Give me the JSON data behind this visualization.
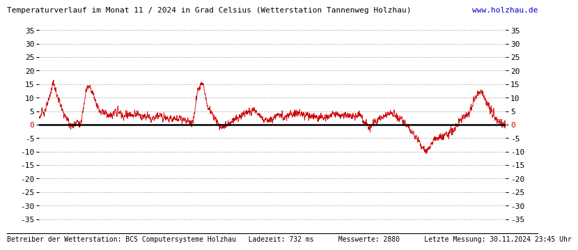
{
  "title": "Temperaturverlauf im Monat 11 / 2024 in Grad Celsius (Wetterstation Tannenweg Holzhau)",
  "url_text": "www.holzhau.de",
  "footer_text": "Betreiber der Wetterstation: BCS Computersysteme Holzhau   Ladezeit: 732 ms      Messwerte: 2880      Letzte Messung: 30.11.2024 23:45 Uhr",
  "ylim": [
    -37,
    37
  ],
  "yticks": [
    -35,
    -30,
    -25,
    -20,
    -15,
    -10,
    -5,
    0,
    5,
    10,
    15,
    20,
    25,
    30,
    35
  ],
  "line_color": "#cc0000",
  "zero_line_color": "#000000",
  "grid_color": "#bbbbbb",
  "bg_color": "#ffffff",
  "title_color": "#000000",
  "url_color": "#0000cc",
  "footer_color": "#000000",
  "n_points": 2880,
  "envelope_x": [
    0,
    0.3,
    0.6,
    0.9,
    1.2,
    1.5,
    1.8,
    2.1,
    2.4,
    2.7,
    3.0,
    3.3,
    3.6,
    3.9,
    4.2,
    4.5,
    4.8,
    5.1,
    5.4,
    5.7,
    6.0,
    6.3,
    6.6,
    6.9,
    7.2,
    7.5,
    7.8,
    8.1,
    8.4,
    8.7,
    9.0,
    9.3,
    9.6,
    9.9,
    10.2,
    10.5,
    10.8,
    11.1,
    11.4,
    11.7,
    12.0,
    12.3,
    12.6,
    12.9,
    13.2,
    13.5,
    13.8,
    14.1,
    14.4,
    14.7,
    15.0,
    15.3,
    15.6,
    15.9,
    16.2,
    16.5,
    16.8,
    17.1,
    17.4,
    17.7,
    18.0,
    18.3,
    18.6,
    18.9,
    19.2,
    19.5,
    19.8,
    20.1,
    20.4,
    20.7,
    21.0,
    21.3,
    21.6,
    21.9,
    22.2,
    22.5,
    22.8,
    23.1,
    23.4,
    23.7,
    24.0,
    24.3,
    24.6,
    24.9,
    25.2,
    25.5,
    25.8,
    26.1,
    26.4,
    26.7,
    27.0,
    27.3,
    27.6,
    27.9,
    28.2,
    28.5,
    28.8,
    29.1,
    29.4,
    29.7,
    30.0
  ],
  "envelope_y": [
    3,
    5,
    8,
    16,
    10,
    5,
    2,
    -1,
    1,
    0,
    13,
    14,
    9,
    5,
    5,
    3,
    4,
    5,
    3,
    4,
    3,
    4,
    3,
    3,
    2,
    3,
    3,
    3,
    2,
    2,
    3,
    2,
    1,
    1,
    13,
    16,
    7,
    4,
    1,
    -1,
    -1,
    1,
    2,
    3,
    4,
    5,
    5,
    4,
    2,
    1,
    2,
    3,
    3,
    3,
    4,
    4,
    4,
    4,
    3,
    3,
    3,
    3,
    3,
    4,
    4,
    3,
    3,
    3,
    3,
    3,
    0,
    -1,
    1,
    2,
    3,
    4,
    4,
    3,
    1,
    -1,
    -3,
    -5,
    -8,
    -10,
    -7,
    -5,
    -5,
    -4,
    -3,
    -2,
    1,
    3,
    4,
    8,
    11,
    12,
    8,
    5,
    2,
    1,
    0
  ]
}
